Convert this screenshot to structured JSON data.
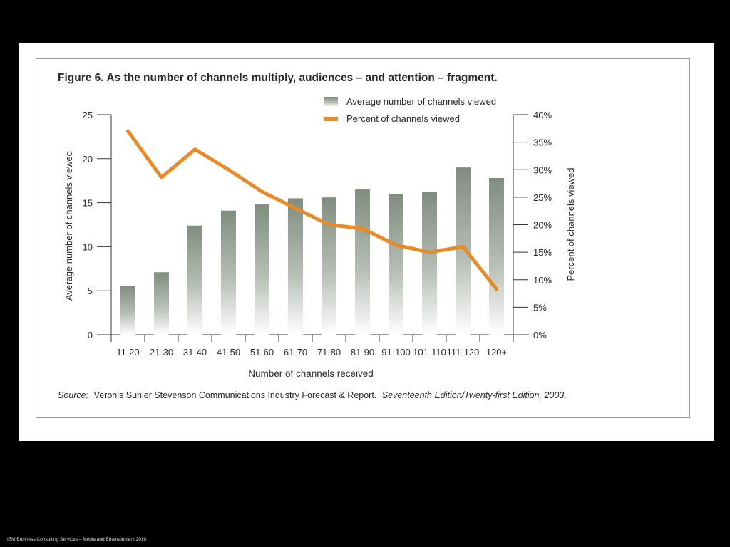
{
  "footer": "IBM Business Consulting Services – Media and Entertainment 2010",
  "figure": {
    "title": "Figure 6. As the number of channels multiply, audiences – and attention – fragment.",
    "source_label": "Source:",
    "source_text": "Veronis Suhler Stevenson Communications Industry Forecast & Report.",
    "source_edition": "Seventeenth Edition/Twenty-first Edition, 2003."
  },
  "colors": {
    "bar_top": "#7f8d7e",
    "bar_bottom": "#ffffff",
    "line": "#e8892a"
  },
  "chart_data": {
    "type": "bar",
    "title": "Figure 6. As the number of channels multiply, audiences – and attention – fragment.",
    "xlabel": "Number of channels received",
    "ylabel": "Average number of channels viewed",
    "y2label": "Percent of channels viewed",
    "categories": [
      "11-20",
      "21-30",
      "31-40",
      "41-50",
      "51-60",
      "61-70",
      "71-80",
      "81-90",
      "91-100",
      "101-110",
      "111-120",
      "120+"
    ],
    "ylim": [
      0,
      25
    ],
    "yticks": [
      0,
      5,
      10,
      15,
      20,
      25
    ],
    "y2lim": [
      0,
      40
    ],
    "y2ticks": [
      "0%",
      "5%",
      "10%",
      "15%",
      "20%",
      "25%",
      "30%",
      "35%",
      "40%"
    ],
    "legend_position": "top-right",
    "grid": false,
    "series": [
      {
        "name": "Average number of channels viewed",
        "type": "bar",
        "axis": "left",
        "values": [
          5.5,
          7.1,
          12.4,
          14.1,
          14.8,
          15.5,
          15.6,
          16.5,
          16.0,
          16.2,
          19.0,
          17.8
        ]
      },
      {
        "name": "Percent of channels viewed",
        "type": "line",
        "axis": "right",
        "values": [
          37.0,
          28.6,
          33.7,
          30.0,
          26.0,
          23.0,
          20.0,
          19.3,
          16.3,
          15.0,
          16.0,
          8.3
        ]
      }
    ]
  }
}
